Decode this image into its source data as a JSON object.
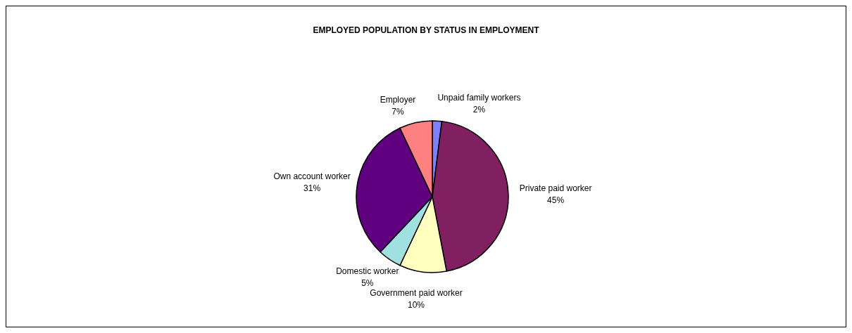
{
  "chart_data": {
    "type": "pie",
    "title": "EMPLOYED POPULATION BY STATUS IN EMPLOYMENT",
    "categories": [
      "Unpaid family workers",
      "Private paid worker",
      "Government paid worker",
      "Domestic worker",
      "Own account worker",
      "Employer"
    ],
    "values": [
      2,
      45,
      10,
      5,
      31,
      7
    ],
    "value_labels": [
      "2%",
      "45%",
      "10%",
      "5%",
      "31%",
      "7%"
    ],
    "colors": [
      "#8080ff",
      "#802060",
      "#ffffc0",
      "#a0e0e0",
      "#600080",
      "#ff8080"
    ]
  }
}
